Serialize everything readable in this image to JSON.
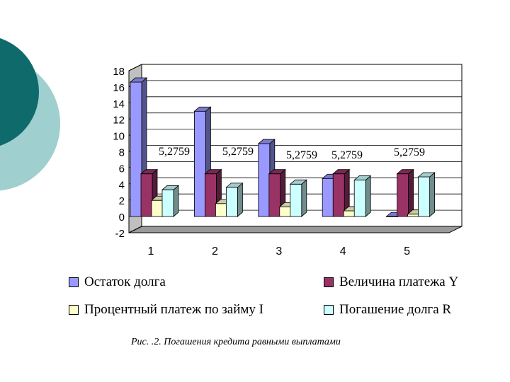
{
  "chart_data": {
    "type": "bar",
    "categories": [
      "1",
      "2",
      "3",
      "4",
      "5"
    ],
    "series": [
      {
        "name": "Остаток долга",
        "values": [
          16.6,
          13.0,
          9.0,
          4.7,
          0.0
        ],
        "color": "#9999ff"
      },
      {
        "name": "Величина платежа Y",
        "values": [
          5.2759,
          5.2759,
          5.2759,
          5.2759,
          5.2759
        ],
        "color": "#993366"
      },
      {
        "name": "Процентный платеж по займу I",
        "values": [
          2.0,
          1.6,
          1.2,
          0.7,
          0.3
        ],
        "color": "#ffffcc"
      },
      {
        "name": "Погашение долга R",
        "values": [
          3.3,
          3.6,
          4.0,
          4.5,
          4.9
        ],
        "color": "#ccffff"
      }
    ],
    "data_labels": [
      "5,2759",
      "5,2759",
      "5,2759",
      "5,2759",
      "5,2759"
    ],
    "y_ticks": [
      "18",
      "16",
      "14",
      "12",
      "10",
      "8",
      "6",
      "4",
      "2",
      "0",
      "-2"
    ],
    "ylim": [
      -2,
      18
    ],
    "grid": true,
    "legend_position": "bottom",
    "caption": "Рис. .2. Погашения кредита равными выплатами"
  },
  "decoration": {
    "dark_color": "#0f6b6b",
    "light_color": "#9fcfcf"
  }
}
